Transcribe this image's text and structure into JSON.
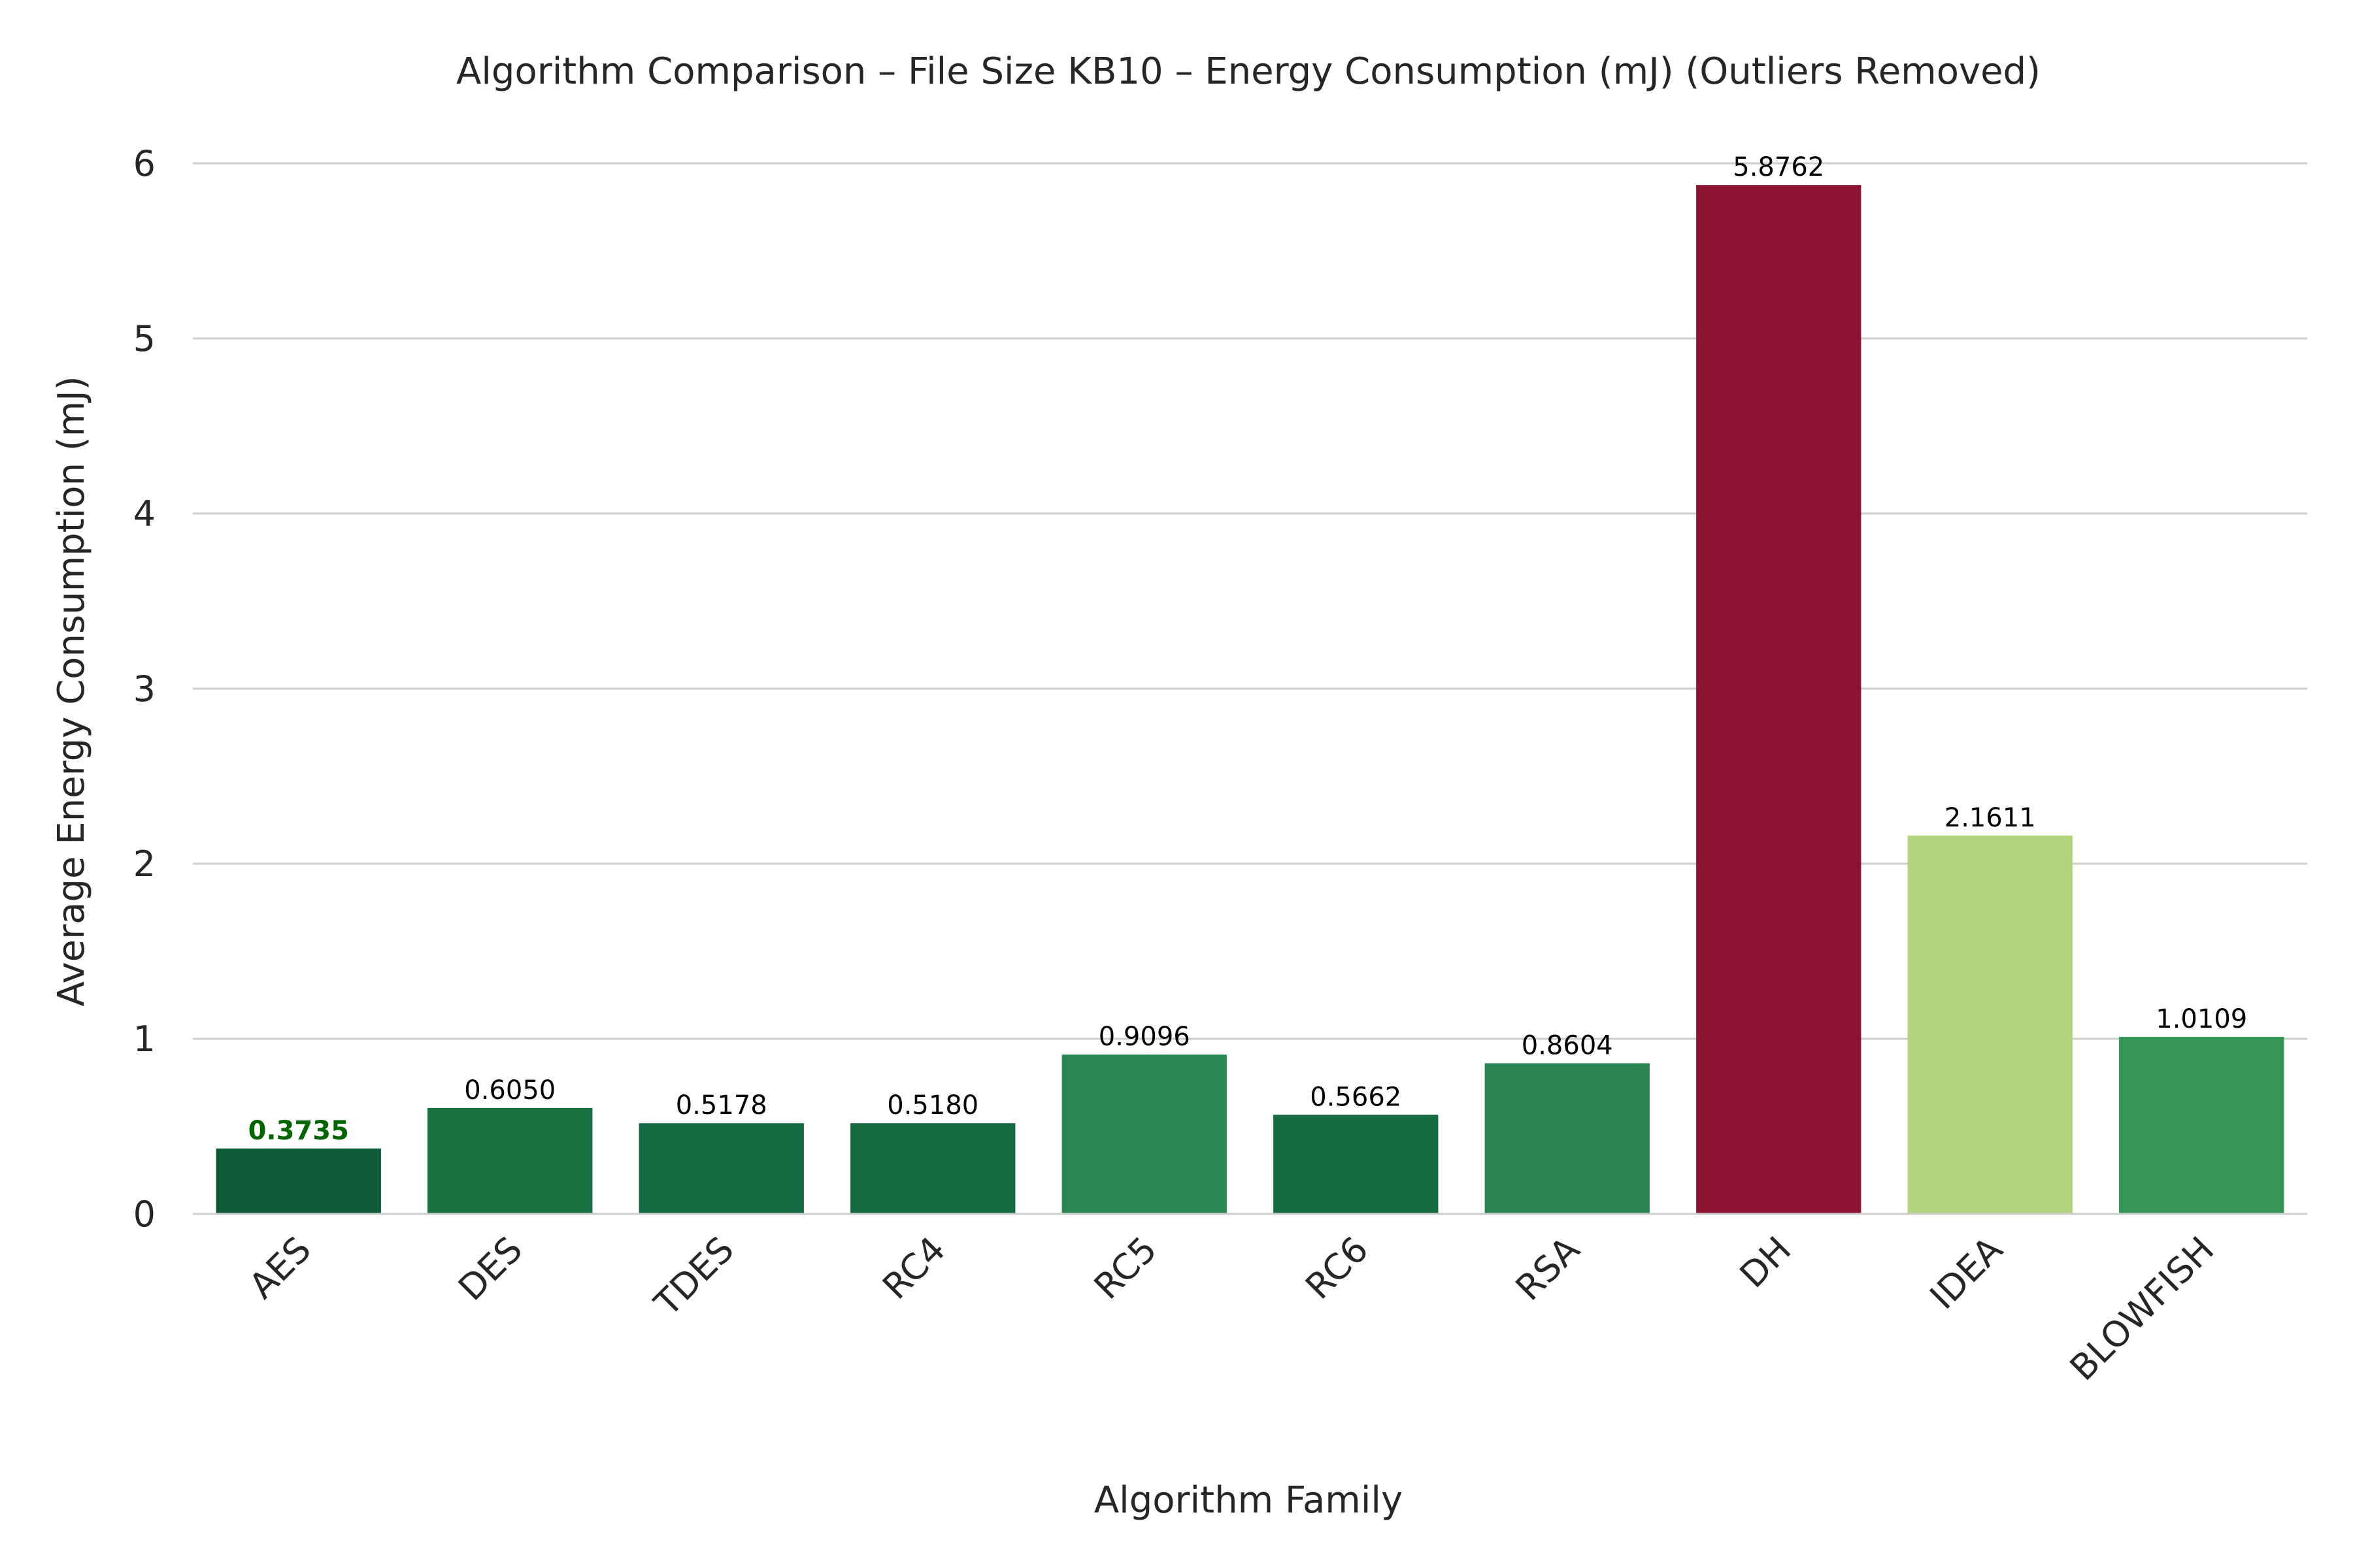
{
  "chart_data": {
    "type": "bar",
    "title": "Algorithm Comparison – File Size KB10 – Energy Consumption (mJ) (Outliers Removed)",
    "xlabel": "Algorithm Family",
    "ylabel": "Average Energy Consumption (mJ)",
    "ylim": [
      0,
      6.2
    ],
    "yticks": [
      0,
      1,
      2,
      3,
      4,
      5,
      6
    ],
    "ytick_labels": [
      "0",
      "1",
      "2",
      "3",
      "4",
      "5",
      "6"
    ],
    "grid": "horizontal",
    "categories": [
      "AES",
      "DES",
      "TDES",
      "RC4",
      "RC5",
      "RC6",
      "RSA",
      "DH",
      "IDEA",
      "BLOWFISH"
    ],
    "values": [
      0.3735,
      0.605,
      0.5178,
      0.518,
      0.9096,
      0.5662,
      0.8604,
      5.8762,
      2.1611,
      1.0109
    ],
    "value_labels": [
      "0.3735",
      "0.6050",
      "0.5178",
      "0.5180",
      "0.9096",
      "0.5662",
      "0.8604",
      "5.8762",
      "2.1611",
      "1.0109"
    ],
    "colors": [
      "#0c5a36",
      "#177140",
      "#176b40",
      "#176b40",
      "#2a8752",
      "#176b40",
      "#298352",
      "#8b1431",
      "#b0d47e",
      "#359556"
    ],
    "highlight": {
      "category": "AES",
      "label_color": "#006400",
      "label_bold": true
    }
  }
}
